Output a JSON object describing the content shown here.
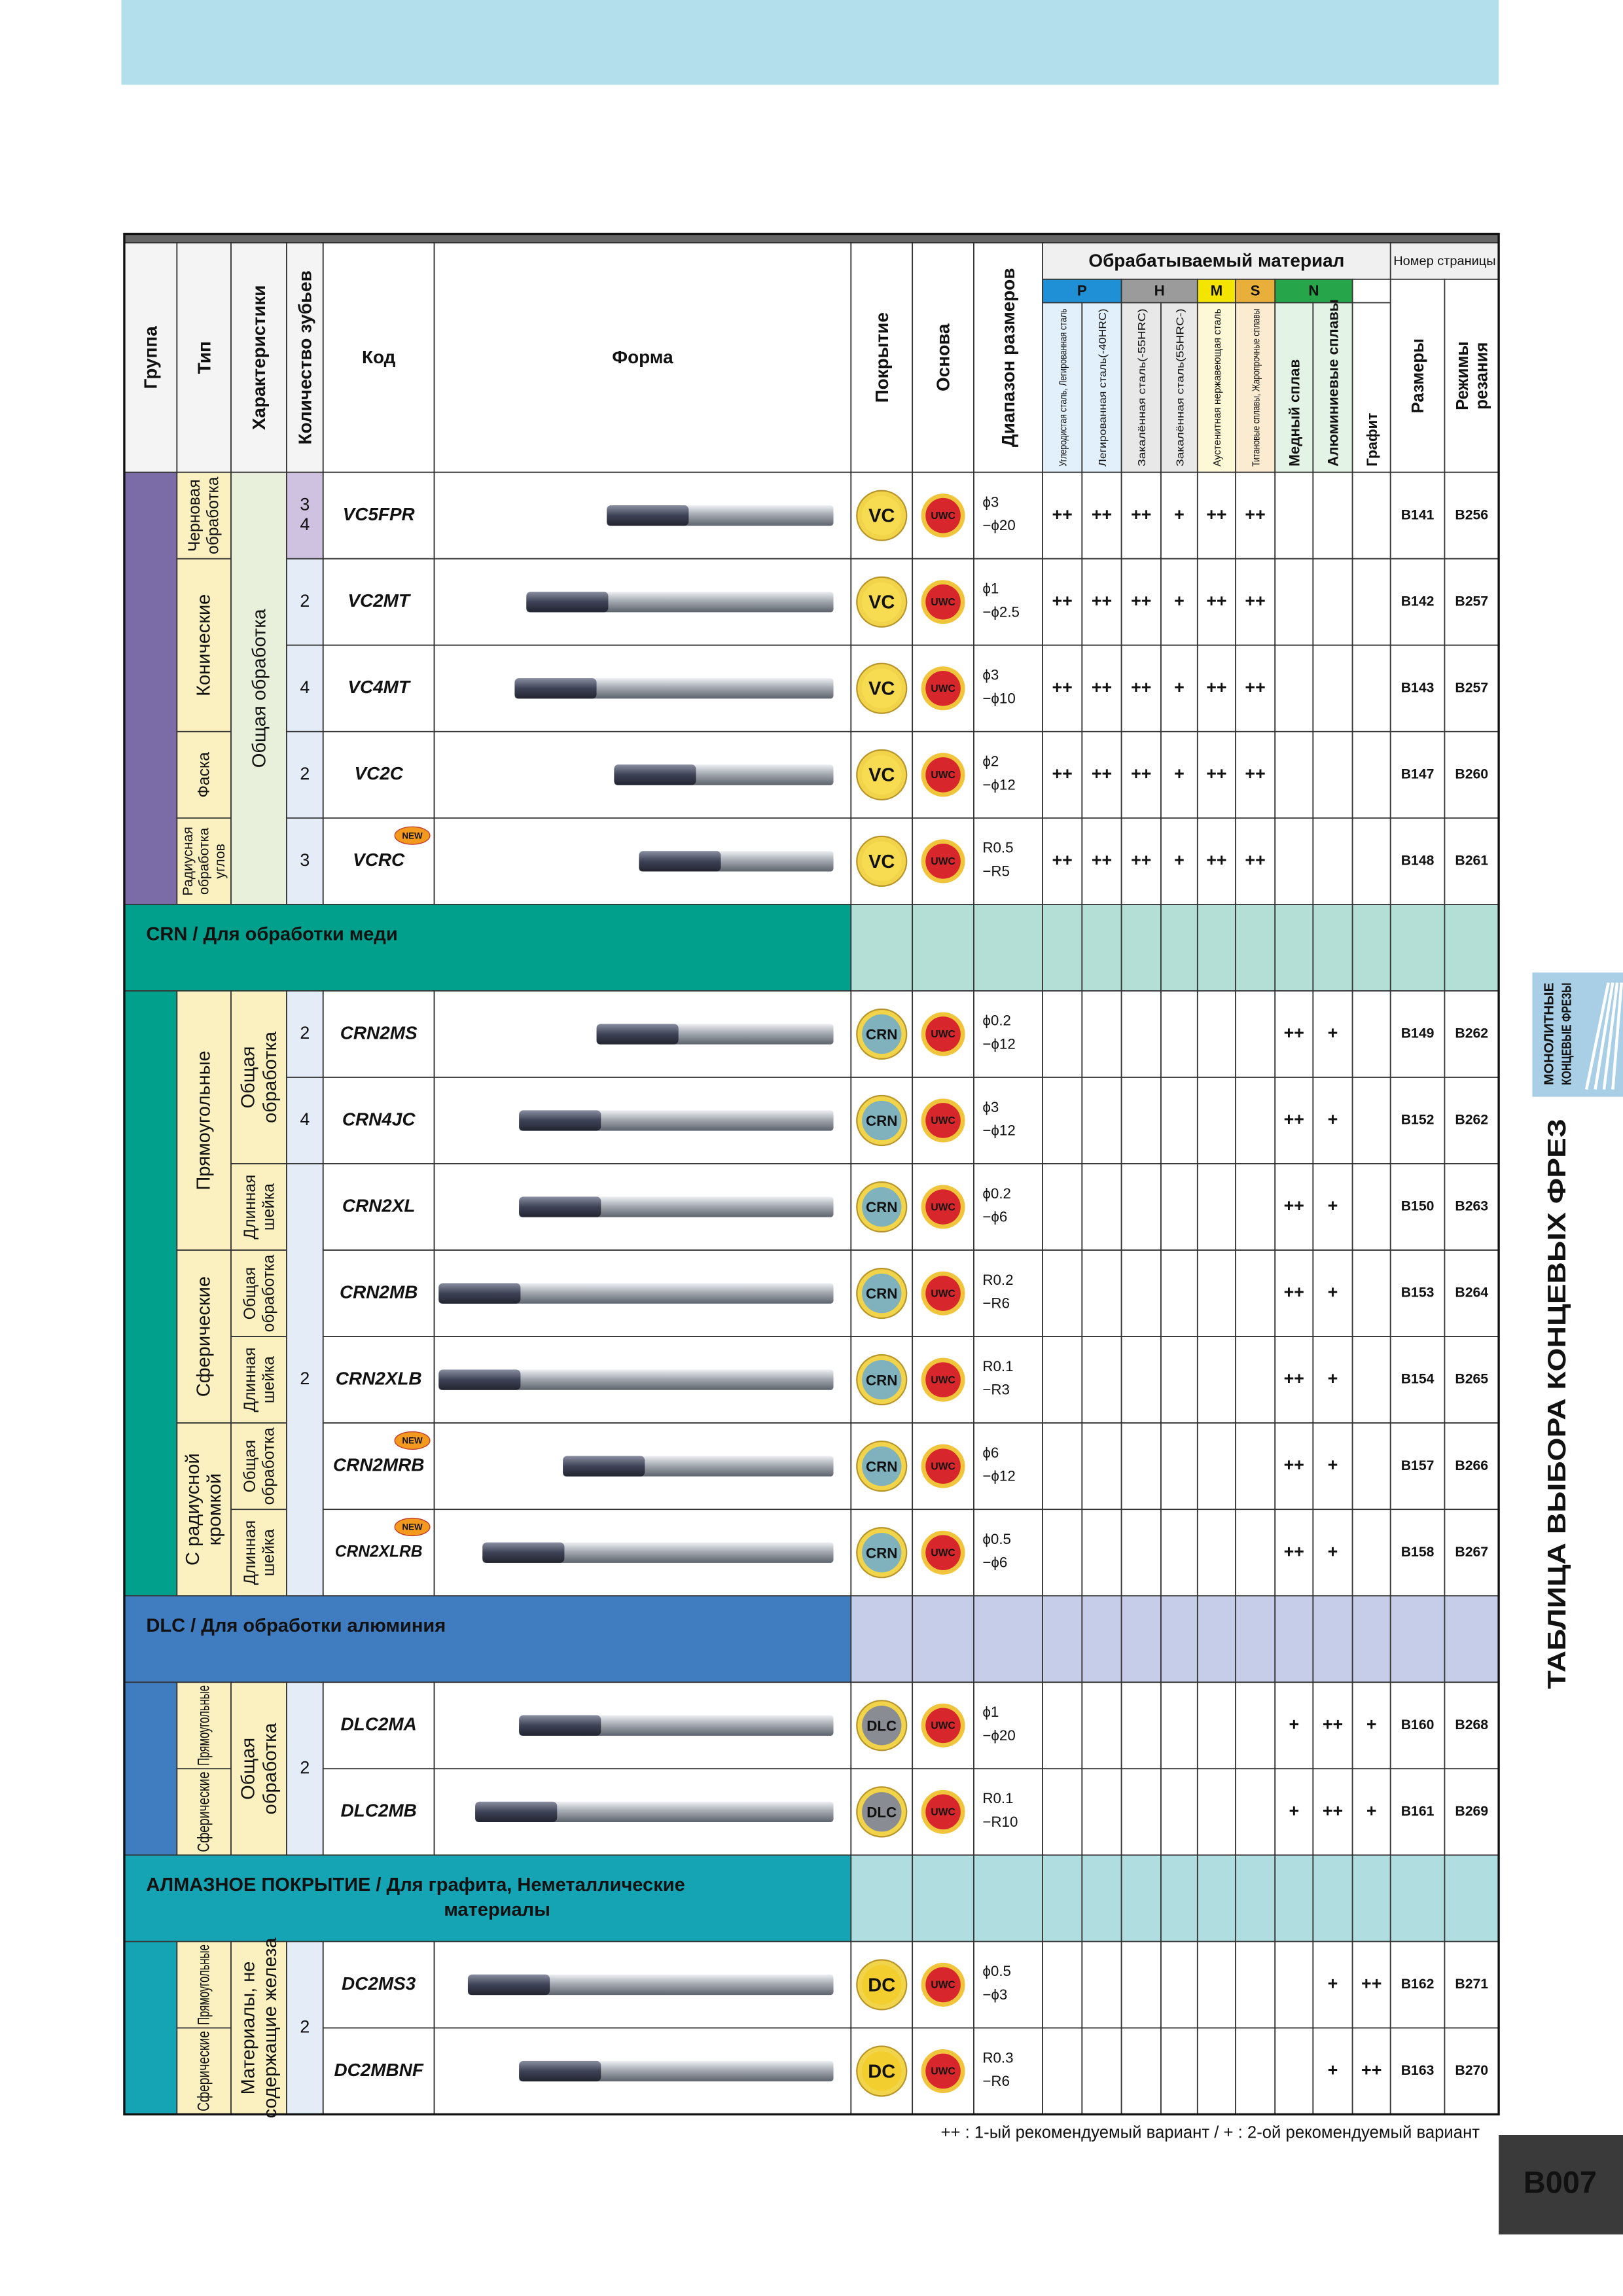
{
  "header": {
    "columns": [
      "Группа",
      "Тип",
      "Характеристики",
      "Количество зубьев",
      "Код",
      "Форма",
      "Покрытие",
      "Основа",
      "Диапазон размеров"
    ],
    "material_title": "Обрабатываемый материал",
    "material_groups": [
      "P",
      "H",
      "M",
      "S",
      "N"
    ],
    "materials": [
      "Углеродистая сталь, Легированная сталь",
      "Легированная сталь(-40HRC)",
      "Закалённая сталь(-55HRC)",
      "Закалённая сталь(55HRC-)",
      "Аустенитная нержавеющая сталь",
      "Титановые сплавы, Жаропрочные сплавы",
      "Медный сплав",
      "Алюминиевые сплавы",
      "Графит"
    ],
    "page_title": "Номер страницы",
    "page_columns": [
      [
        "Размеры"
      ],
      [
        "Режимы",
        "резания"
      ]
    ]
  },
  "sections": [
    {
      "types": [
        [
          "Черновая",
          "обработка"
        ],
        [
          "Конические"
        ],
        [
          "Фаска"
        ],
        [
          "Радиусная",
          "обработка",
          "углов"
        ]
      ],
      "features": [
        [
          "Общая обработка"
        ]
      ],
      "teeth": [
        [
          "3",
          "4"
        ],
        [
          "2"
        ],
        [
          "4"
        ],
        [
          "2"
        ],
        [
          "3"
        ]
      ],
      "rows": [
        {
          "code": "VC5FPR",
          "coating": "VC",
          "base": "UWC",
          "size": [
            "ϕ3",
            "−ϕ20"
          ],
          "materials": [
            "++",
            "++",
            "++",
            "+",
            "++",
            "++",
            null,
            null,
            null
          ],
          "pages": [
            "B141",
            "B256"
          ]
        },
        {
          "code": "VC2MT",
          "coating": "VC",
          "base": "UWC",
          "size": [
            "ϕ1",
            "−ϕ2.5"
          ],
          "materials": [
            "++",
            "++",
            "++",
            "+",
            "++",
            "++",
            null,
            null,
            null
          ],
          "pages": [
            "B142",
            "B257"
          ]
        },
        {
          "code": "VC4MT",
          "coating": "VC",
          "base": "UWC",
          "size": [
            "ϕ3",
            "−ϕ10"
          ],
          "materials": [
            "++",
            "++",
            "++",
            "+",
            "++",
            "++",
            null,
            null,
            null
          ],
          "pages": [
            "B143",
            "B257"
          ]
        },
        {
          "code": "VC2C",
          "coating": "VC",
          "base": "UWC",
          "size": [
            "ϕ2",
            "−ϕ12"
          ],
          "materials": [
            "++",
            "++",
            "++",
            "+",
            "++",
            "++",
            null,
            null,
            null
          ],
          "pages": [
            "B147",
            "B260"
          ]
        },
        {
          "code": "VCRC",
          "badge": "NEW",
          "coating": "VC",
          "base": "UWC",
          "size": [
            "R0.5",
            "−R5"
          ],
          "materials": [
            "++",
            "++",
            "++",
            "+",
            "++",
            "++",
            null,
            null,
            null
          ],
          "pages": [
            "B148",
            "B261"
          ]
        }
      ]
    },
    {
      "title": [
        "CRN / Для обработки меди"
      ],
      "types": [
        [
          "Прямоугольные"
        ],
        [
          "Сферические"
        ],
        [
          "С радиусной",
          "кромкой"
        ]
      ],
      "features": [
        [
          "Общая",
          "обработка"
        ],
        [
          "Длинная",
          "шейка"
        ],
        [
          "Общая",
          "обработка"
        ],
        [
          "Длинная",
          "шейка"
        ],
        [
          "Общая",
          "обработка"
        ],
        [
          "Длинная",
          "шейка"
        ]
      ],
      "teeth": [
        [
          "2"
        ],
        [
          "4"
        ],
        [
          "2"
        ]
      ],
      "rows": [
        {
          "code": "CRN2MS",
          "coating": "CRN",
          "base": "UWC",
          "size": [
            "ϕ0.2",
            "−ϕ12"
          ],
          "materials": [
            null,
            null,
            null,
            null,
            null,
            null,
            "++",
            "+",
            null
          ],
          "pages": [
            "B149",
            "B262"
          ]
        },
        {
          "code": "CRN4JC",
          "coating": "CRN",
          "base": "UWC",
          "size": [
            "ϕ3",
            "−ϕ12"
          ],
          "materials": [
            null,
            null,
            null,
            null,
            null,
            null,
            "++",
            "+",
            null
          ],
          "pages": [
            "B152",
            "B262"
          ]
        },
        {
          "code": "CRN2XL",
          "coating": "CRN",
          "base": "UWC",
          "size": [
            "ϕ0.2",
            "−ϕ6"
          ],
          "materials": [
            null,
            null,
            null,
            null,
            null,
            null,
            "++",
            "+",
            null
          ],
          "pages": [
            "B150",
            "B263"
          ]
        },
        {
          "code": "CRN2MB",
          "coating": "CRN",
          "base": "UWC",
          "size": [
            "R0.2",
            "−R6"
          ],
          "materials": [
            null,
            null,
            null,
            null,
            null,
            null,
            "++",
            "+",
            null
          ],
          "pages": [
            "B153",
            "B264"
          ]
        },
        {
          "code": "CRN2XLB",
          "coating": "CRN",
          "base": "UWC",
          "size": [
            "R0.1",
            "−R3"
          ],
          "materials": [
            null,
            null,
            null,
            null,
            null,
            null,
            "++",
            "+",
            null
          ],
          "pages": [
            "B154",
            "B265"
          ]
        },
        {
          "code": "CRN2MRB",
          "badge": "NEW",
          "coating": "CRN",
          "base": "UWC",
          "size": [
            "ϕ6",
            "−ϕ12"
          ],
          "materials": [
            null,
            null,
            null,
            null,
            null,
            null,
            "++",
            "+",
            null
          ],
          "pages": [
            "B157",
            "B266"
          ]
        },
        {
          "code": "CRN2XLRB",
          "badge": "NEW",
          "coating": "CRN",
          "base": "UWC",
          "size": [
            "ϕ0.5",
            "−ϕ6"
          ],
          "materials": [
            null,
            null,
            null,
            null,
            null,
            null,
            "++",
            "+",
            null
          ],
          "pages": [
            "B158",
            "B267"
          ]
        }
      ]
    },
    {
      "title": [
        "DLC / Для обработки алюминия"
      ],
      "types": [
        [
          "Прямоугольные"
        ],
        [
          "Сферические"
        ]
      ],
      "features": [
        [
          "Общая",
          "обработка"
        ]
      ],
      "teeth": [
        [
          "2"
        ]
      ],
      "rows": [
        {
          "code": "DLC2MA",
          "coating": "DLC",
          "base": "UWC",
          "size": [
            "ϕ1",
            "−ϕ20"
          ],
          "materials": [
            null,
            null,
            null,
            null,
            null,
            null,
            "+",
            "++",
            "+"
          ],
          "pages": [
            "B160",
            "B268"
          ]
        },
        {
          "code": "DLC2MB",
          "coating": "DLC",
          "base": "UWC",
          "size": [
            "R0.1",
            "−R10"
          ],
          "materials": [
            null,
            null,
            null,
            null,
            null,
            null,
            "+",
            "++",
            "+"
          ],
          "pages": [
            "B161",
            "B269"
          ]
        }
      ]
    },
    {
      "title": [
        "АЛМАЗНОЕ ПОКРЫТИЕ / Для графита, Неметаллические",
        "материалы"
      ],
      "types": [
        [
          "Прямоугольные"
        ],
        [
          "Сферические"
        ]
      ],
      "features": [
        [
          "Материалы, не",
          "содержащие железа"
        ]
      ],
      "teeth": [
        [
          "2"
        ]
      ],
      "rows": [
        {
          "code": "DC2MS3",
          "coating": "DC",
          "base": "UWC",
          "size": [
            "ϕ0.5",
            "−ϕ3"
          ],
          "materials": [
            null,
            null,
            null,
            null,
            null,
            null,
            null,
            "+",
            "++"
          ],
          "pages": [
            "B162",
            "B271"
          ]
        },
        {
          "code": "DC2MBNF",
          "coating": "DC",
          "base": "UWC",
          "size": [
            "R0.3",
            "−R6"
          ],
          "materials": [
            null,
            null,
            null,
            null,
            null,
            null,
            null,
            "+",
            "++"
          ],
          "pages": [
            "B163",
            "B270"
          ]
        }
      ]
    }
  ],
  "footnote": "++ : 1-ый рекомендуемый вариант / + : 2-ой рекомендуемый вариант",
  "side_tab": [
    "МОНОЛИТНЫЕ",
    "КОНЦЕВЫЕ ФРЕЗЫ"
  ],
  "side_title": "ТАБЛИЦА ВЫБОРА КОНЦЕВЫХ ФРЕЗ",
  "page_number": "B007"
}
